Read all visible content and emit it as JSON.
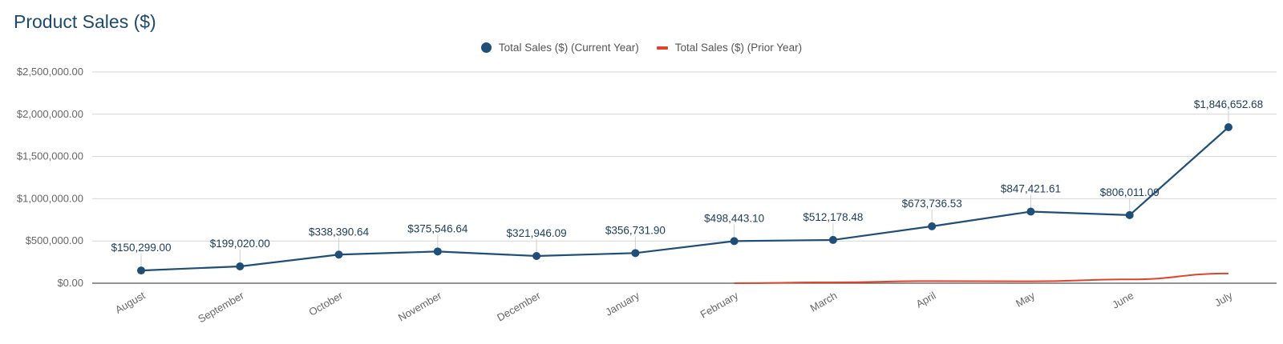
{
  "chart_data": {
    "type": "line",
    "title": "Product Sales ($)",
    "categories": [
      "August",
      "September",
      "October",
      "November",
      "December",
      "January",
      "February",
      "March",
      "April",
      "May",
      "June",
      "July"
    ],
    "series": [
      {
        "name": "Total Sales ($) (Current Year)",
        "color": "#1f4e79",
        "marker": "circle",
        "values": [
          150299.0,
          199020.0,
          338390.64,
          375546.64,
          321946.09,
          356731.9,
          498443.1,
          512178.48,
          673736.53,
          847421.61,
          806011.09,
          1846652.68
        ],
        "labels": [
          "$150,299.00",
          "$199,020.00",
          "$338,390.64",
          "$375,546.64",
          "$321,946.09",
          "$356,731.90",
          "$498,443.10",
          "$512,178.48",
          "$673,736.53",
          "$847,421.61",
          "$806,011.09",
          "$1,846,652.68"
        ]
      },
      {
        "name": "Total Sales ($) (Prior Year)",
        "color": "#e0432b",
        "marker": "line",
        "values": [
          null,
          null,
          null,
          null,
          null,
          null,
          0,
          10000,
          25000,
          22000,
          45000,
          115000
        ]
      }
    ],
    "ylim": [
      0,
      2500000
    ],
    "yticks": [
      0,
      500000,
      1000000,
      1500000,
      2000000,
      2500000
    ],
    "ytick_labels": [
      "$0.00",
      "$500,000.00",
      "$1,000,000.00",
      "$1,500,000.00",
      "$2,000,000.00",
      "$2,500,000.00"
    ],
    "grid": true,
    "legend": "top-center"
  }
}
